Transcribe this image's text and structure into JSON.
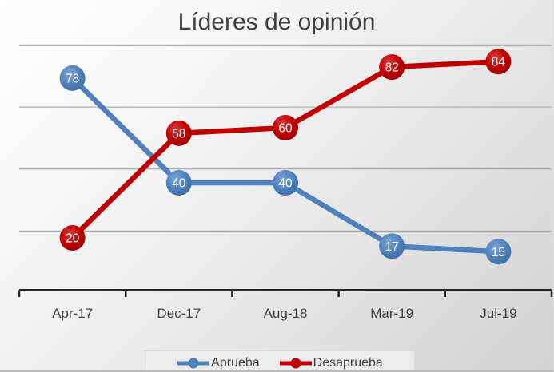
{
  "title": "Líderes de opinión",
  "chart_data": {
    "type": "line",
    "title": "Líderes de opinión",
    "categories": [
      "Apr-17",
      "Dec-17",
      "Aug-18",
      "Mar-19",
      "Jul-19"
    ],
    "series": [
      {
        "name": "Aprueba",
        "color": "#4f81bd",
        "values": [
          78,
          40,
          40,
          17,
          15
        ]
      },
      {
        "name": "Desaprueba",
        "color": "#c00000",
        "values": [
          20,
          58,
          60,
          82,
          84
        ]
      }
    ],
    "xlabel": "",
    "ylabel": "",
    "ylim": [
      0,
      90
    ],
    "gridline_step": 22.5,
    "grid": true,
    "y_axis_labels_visible": false,
    "data_labels": "inside_markers",
    "legend_position": "bottom",
    "axis_color": "#262626",
    "gridline_color": "#aeaeae",
    "label_color": "#404040",
    "marker_label_color": "#ffffff"
  },
  "legend": {
    "items": [
      {
        "label": "Aprueba",
        "color": "#4f81bd"
      },
      {
        "label": "Desaprueba",
        "color": "#c00000"
      }
    ]
  }
}
